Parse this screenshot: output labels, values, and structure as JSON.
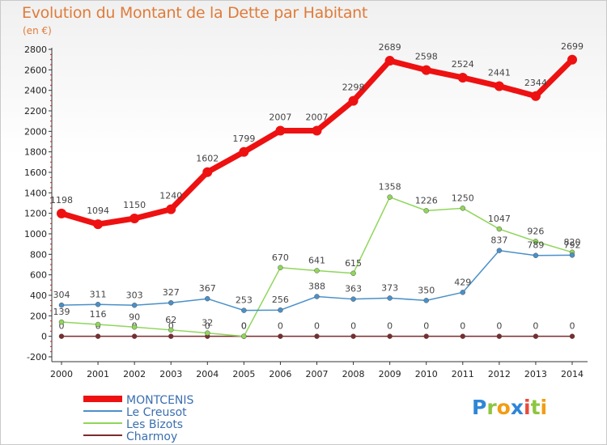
{
  "header": {
    "title": "Evolution du Montant de la Dette par Habitant",
    "subtitle": "(en €)"
  },
  "logo": {
    "text": "Proxiti",
    "letters": [
      "P",
      "r",
      "o",
      "x",
      "i",
      "t",
      "i"
    ],
    "colors": [
      "#2f86d6",
      "#8dc63f",
      "#f39c12",
      "#2f86d6",
      "#e74c3c",
      "#8dc63f",
      "#f39c12"
    ]
  },
  "chart_data": {
    "type": "line",
    "x": [
      "2000",
      "2001",
      "2002",
      "2003",
      "2004",
      "2005",
      "2006",
      "2007",
      "2008",
      "2009",
      "2010",
      "2011",
      "2012",
      "2013",
      "2014"
    ],
    "ylim": [
      -200,
      2800
    ],
    "yticks": [
      -200,
      0,
      200,
      400,
      600,
      800,
      1000,
      1200,
      1400,
      1600,
      1800,
      2000,
      2200,
      2400,
      2600,
      2800
    ],
    "grid": false,
    "legend_position": "bottom-left",
    "series": [
      {
        "name": "MONTCENIS",
        "color": "#ee1111",
        "values": [
          1198,
          1094,
          1150,
          1240,
          1602,
          1799,
          2007,
          2007,
          2298,
          2689,
          2598,
          2524,
          2441,
          2344,
          2699
        ]
      },
      {
        "name": "Le Creusot",
        "color": "#4a90c8",
        "values": [
          304,
          311,
          303,
          327,
          367,
          253,
          256,
          388,
          363,
          373,
          350,
          429,
          837,
          789,
          792
        ]
      },
      {
        "name": "Les Bizots",
        "color": "#8fd65a",
        "values": [
          139,
          116,
          90,
          62,
          32,
          0,
          670,
          641,
          615,
          1358,
          1226,
          1250,
          1047,
          926,
          820
        ]
      },
      {
        "name": "Charmoy",
        "color": "#7a2c2c",
        "values": [
          0,
          0,
          0,
          0,
          0,
          0,
          0,
          0,
          0,
          0,
          0,
          0,
          0,
          0,
          0
        ]
      }
    ]
  }
}
